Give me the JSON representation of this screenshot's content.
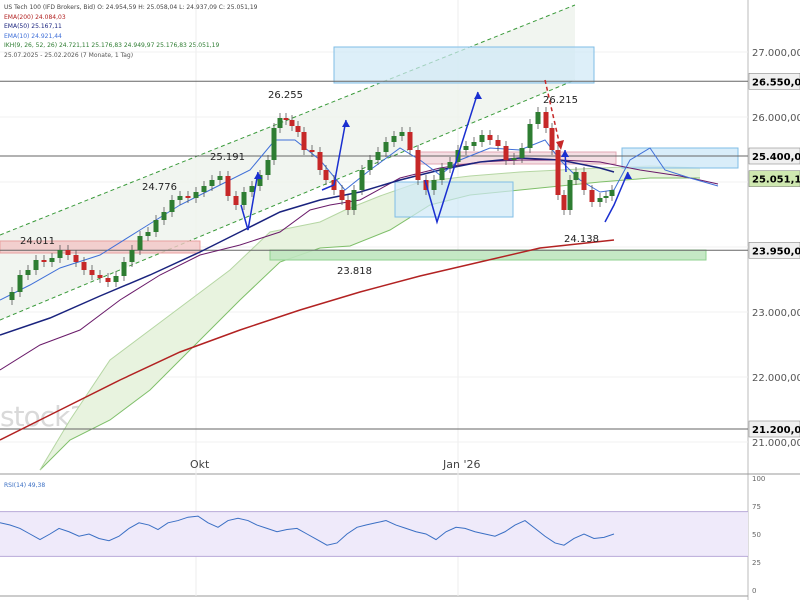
{
  "legend": {
    "title": "US Tech 100 (IFD Brokers, Bid)  O: 24.954,59  H: 25.058,04  L: 24.937,09  C: 25.051,19",
    "ema200": "EMA(200)  24.084,03",
    "ema50": "EMA(50)  25.167,11",
    "ema10": "EMA(10)  24.921,44",
    "ikh": "IKH(9, 26, 52, 26)  24.721,11  25.176,83  24.949,97  25.176,83  25.051,19",
    "range": "25.07.2025 - 25.02.2026  (7 Monate, 1 Tag)"
  },
  "rsi_legend": "RSI(14)  49,38",
  "watermark": "stock3",
  "colors": {
    "up": "#2e7d32",
    "down": "#c62828",
    "ema200": "#b22222",
    "ema50": "#1a237e",
    "ema10": "#3f6fd8",
    "kijun": "#6a1b6a",
    "cloud_edge": "#7fbf6a",
    "channel": "#3a9a3a",
    "arrow": "#1a2fd0",
    "rsi": "#3a6fc4"
  },
  "chart_data": {
    "type": "candlestick",
    "y_axis": {
      "ticks": [
        "21.000,00",
        "22.000,00",
        "23.000,00",
        "24.000,00",
        "25.000,00",
        "26.000,00",
        "27.000,00"
      ],
      "tick_values": [
        21000,
        22000,
        23000,
        24000,
        25000,
        26000,
        27000
      ]
    },
    "x_axis": {
      "labels": [
        "Okt",
        "Jan '26"
      ]
    },
    "price_labels": [
      {
        "text": "26.550,00",
        "value": 26550,
        "style": "line"
      },
      {
        "text": "25.400,00",
        "value": 25400,
        "style": "line"
      },
      {
        "text": "25.051,19",
        "value": 25051.19,
        "style": "current"
      },
      {
        "text": "23.950,00",
        "value": 23950,
        "style": "line"
      },
      {
        "text": "21.200,00",
        "value": 21200,
        "style": "line"
      }
    ],
    "annotations": [
      {
        "text": "24.011",
        "value": 24011
      },
      {
        "text": "24.776",
        "value": 24776
      },
      {
        "text": "25.191",
        "value": 25191
      },
      {
        "text": "26.255",
        "value": 26255
      },
      {
        "text": "23.818",
        "value": 23818
      },
      {
        "text": "26.215",
        "value": 26215
      },
      {
        "text": "24.138",
        "value": 24138
      }
    ],
    "rsi": {
      "ticks": [
        "100",
        "75",
        "50",
        "25",
        "0"
      ],
      "tick_values": [
        100,
        75,
        50,
        25,
        0
      ]
    }
  }
}
